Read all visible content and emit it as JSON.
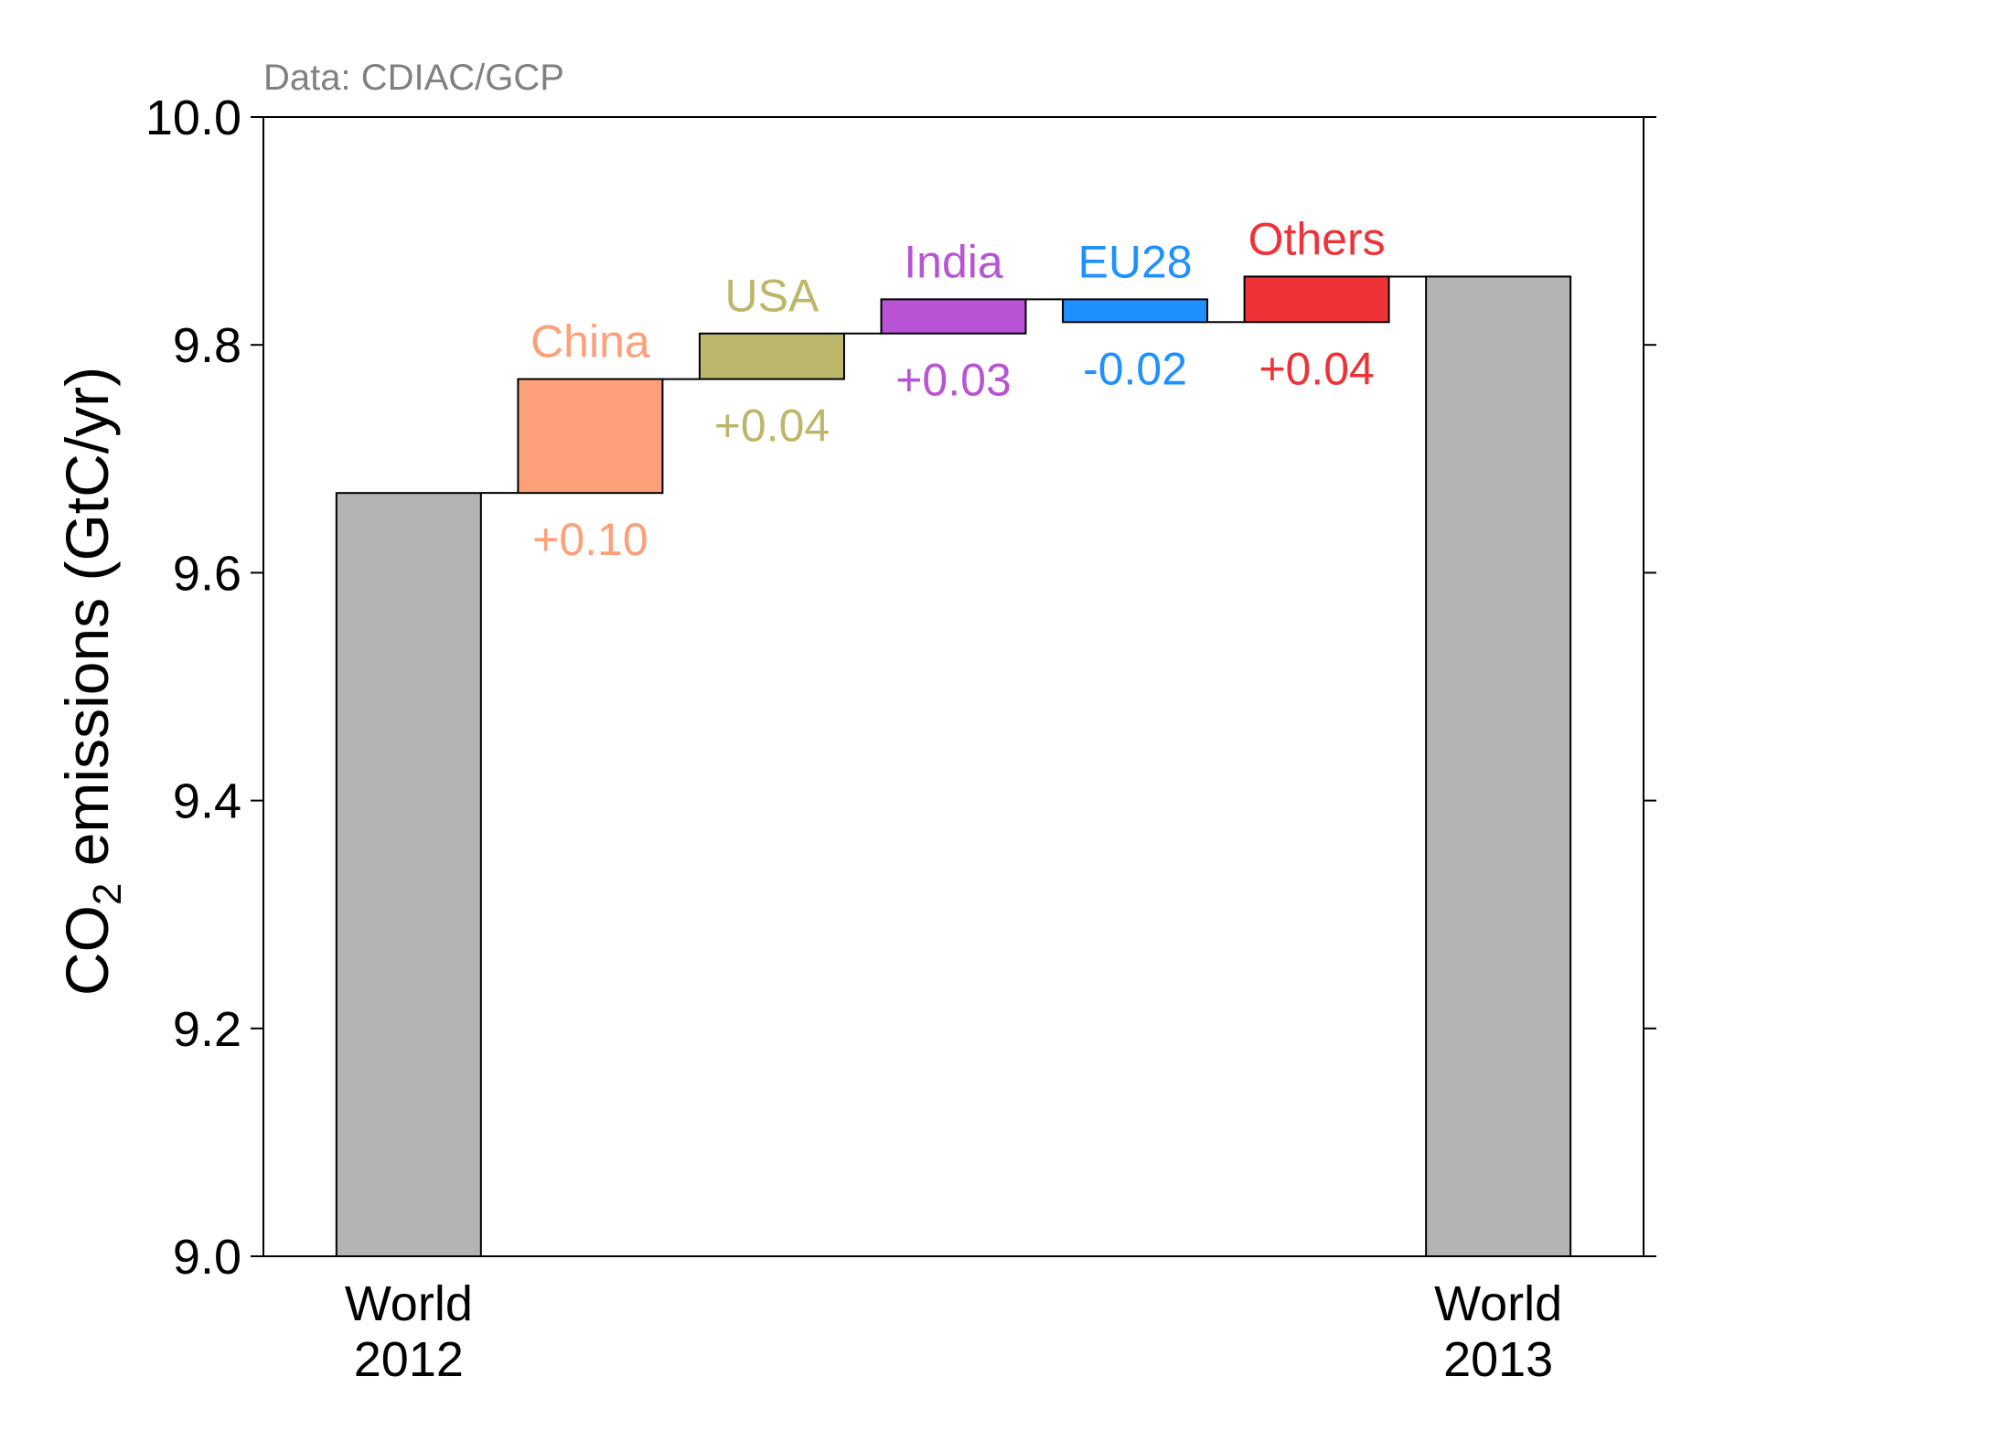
{
  "chart_data": {
    "type": "bar",
    "subtype": "waterfall",
    "source_note": "Data: CDIAC/GCP",
    "ylabel_main": "CO",
    "ylabel_sub": "2",
    "ylabel_rest": " emissions (GtC/yr)",
    "ylim": [
      9.0,
      10.0
    ],
    "yticks": [
      "9.0",
      "9.2",
      "9.4",
      "9.6",
      "9.8",
      "10.0"
    ],
    "grid": false,
    "totals": [
      {
        "label_line1": "World",
        "label_line2": "2012",
        "value": 9.67,
        "color": "#b3b3b3"
      },
      {
        "label_line1": "World",
        "label_line2": "2013",
        "value": 9.86,
        "color": "#b3b3b3"
      }
    ],
    "steps": [
      {
        "name": "China",
        "change_label": "+0.10",
        "start": 9.67,
        "end": 9.77,
        "color": "#fca079"
      },
      {
        "name": "USA",
        "change_label": "+0.04",
        "start": 9.77,
        "end": 9.81,
        "color": "#bdb76b"
      },
      {
        "name": "India",
        "change_label": "+0.03",
        "start": 9.81,
        "end": 9.84,
        "color": "#b854d4"
      },
      {
        "name": "EU28",
        "change_label": "-0.02",
        "start": 9.84,
        "end": 9.82,
        "color": "#1e90ff"
      },
      {
        "name": "Others",
        "change_label": "+0.04",
        "start": 9.82,
        "end": 9.86,
        "color": "#ee3338"
      }
    ]
  }
}
